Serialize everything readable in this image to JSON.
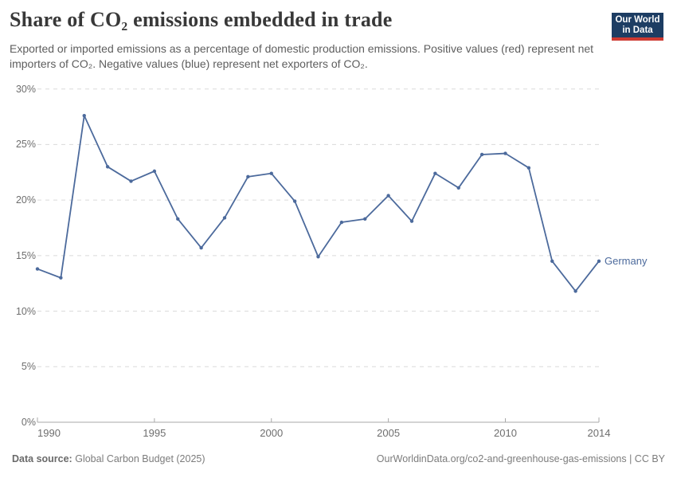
{
  "header": {
    "title": "Share of CO₂ emissions embedded in trade",
    "subtitle": "Exported or imported emissions as a percentage of domestic production emissions. Positive values (red) represent net importers of CO₂. Negative values (blue) represent net exporters of CO₂.",
    "logo": {
      "line1": "Our World",
      "line2": "in Data",
      "bg": "#1D3D63",
      "bar": "#CE3A32"
    }
  },
  "chart_data": {
    "type": "line",
    "title": "Share of CO₂ emissions embedded in trade",
    "xlabel": "",
    "ylabel": "",
    "ylim": [
      0,
      30
    ],
    "grid": "horizontal-dashed",
    "yticks": [
      0,
      5,
      10,
      15,
      20,
      25,
      30
    ],
    "ytick_labels": [
      "0%",
      "5%",
      "10%",
      "15%",
      "20%",
      "25%",
      "30%"
    ],
    "xticks": [
      1990,
      1995,
      2000,
      2005,
      2010,
      2014
    ],
    "xtick_labels": [
      "1990",
      "1995",
      "2000",
      "2005",
      "2010",
      "2014"
    ],
    "series": [
      {
        "name": "Germany",
        "color": "#4C6A9C",
        "x": [
          1990,
          1991,
          1992,
          1993,
          1994,
          1995,
          1996,
          1997,
          1998,
          1999,
          2000,
          2001,
          2002,
          2003,
          2004,
          2005,
          2006,
          2007,
          2008,
          2009,
          2010,
          2011,
          2012,
          2013,
          2014
        ],
        "values": [
          13.8,
          13.0,
          27.6,
          23.0,
          21.7,
          22.6,
          18.3,
          15.7,
          18.4,
          22.1,
          22.4,
          19.9,
          14.9,
          18.0,
          18.3,
          20.4,
          18.1,
          22.4,
          21.1,
          24.1,
          24.2,
          22.9,
          14.5,
          11.8,
          14.5
        ]
      }
    ]
  },
  "footer": {
    "source_label": "Data source:",
    "source_value": "Global Carbon Budget (2025)",
    "credit": "OurWorldinData.org/co2-and-greenhouse-gas-emissions | CC BY"
  }
}
